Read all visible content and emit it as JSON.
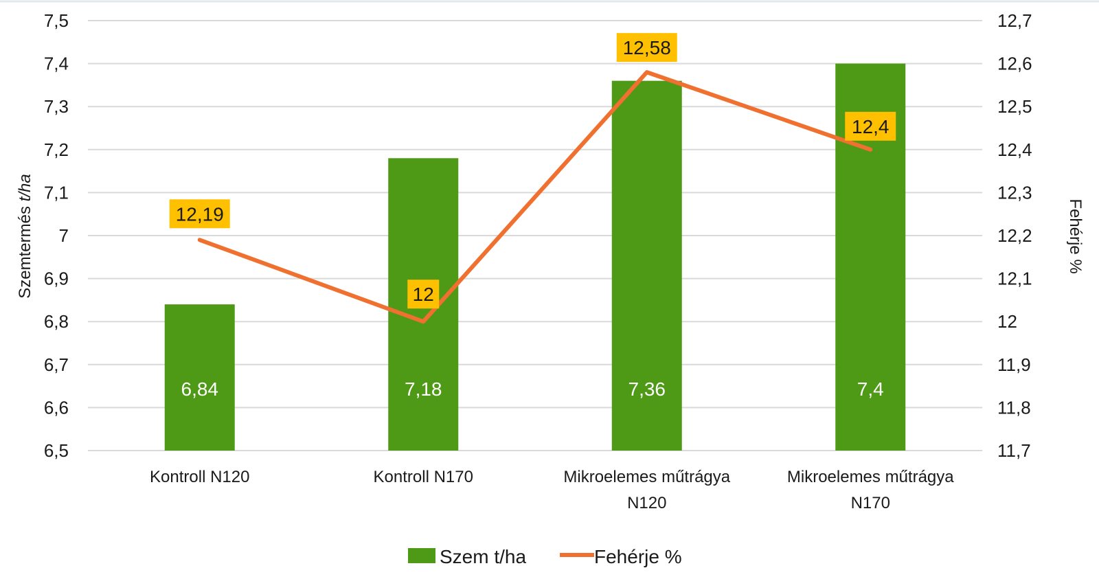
{
  "chart_data": {
    "type": "bar",
    "categories": [
      [
        "Kontroll N120"
      ],
      [
        "Kontroll N170"
      ],
      [
        "Mikroelemes  műtrágya",
        "N120"
      ],
      [
        "Mikroelemes  műtrágya",
        "N170"
      ]
    ],
    "series": [
      {
        "name": "Szem t/ha",
        "type": "bar",
        "axis": "left",
        "values": [
          6.84,
          7.18,
          7.36,
          7.4
        ],
        "labels": [
          "6,84",
          "7,18",
          "7,36",
          "7,4"
        ],
        "color": "#4E9A16"
      },
      {
        "name": "Fehérje %",
        "type": "line",
        "axis": "right",
        "values": [
          12.19,
          12.0,
          12.58,
          12.4
        ],
        "labels": [
          "12,19",
          "12",
          "12,58",
          "12,4"
        ],
        "color": "#F07030",
        "label_bg": "#FFC000"
      }
    ],
    "y_left": {
      "label_prefix": "Szemtermés ",
      "label_italic": "t/ha",
      "min": 6.5,
      "max": 7.5,
      "ticks": [
        "6,5",
        "6,6",
        "6,7",
        "6,8",
        "6,9",
        "7",
        "7,1",
        "7,2",
        "7,3",
        "7,4",
        "7,5"
      ]
    },
    "y_right": {
      "label": "Fehérje %",
      "min": 11.7,
      "max": 12.7,
      "ticks": [
        "11,7",
        "11,8",
        "11,9",
        "12",
        "12,1",
        "12,2",
        "12,3",
        "12,4",
        "12,5",
        "12,6",
        "12,7"
      ]
    },
    "grid": true,
    "legend": "bottom",
    "grid_color": "#D9D9D9"
  }
}
